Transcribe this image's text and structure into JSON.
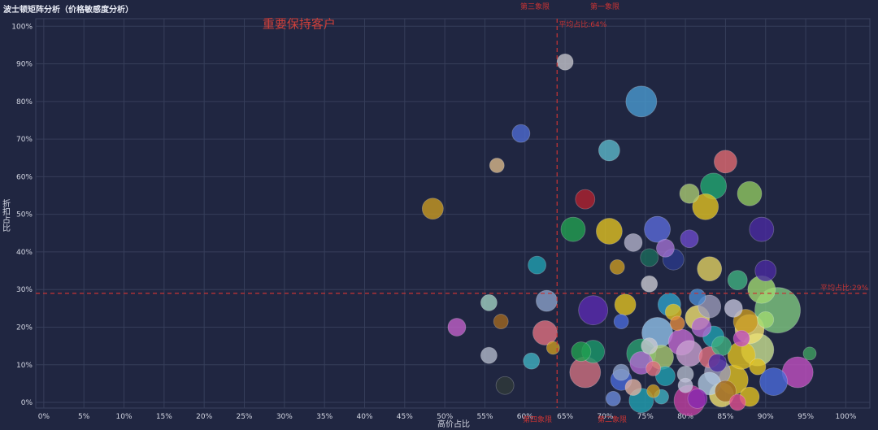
{
  "chart_data": {
    "type": "scatter",
    "subtype": "bubble",
    "title": "波士顿矩阵分析（价格敏感度分析）",
    "xlabel": "高价占比",
    "ylabel": "折扣占比",
    "xlim": [
      -0.01,
      1.03
    ],
    "ylim": [
      -0.015,
      1.02
    ],
    "xticks": [
      0,
      0.05,
      0.1,
      0.15,
      0.2,
      0.25,
      0.3,
      0.35,
      0.4,
      0.45,
      0.5,
      0.55,
      0.6,
      0.65,
      0.7,
      0.75,
      0.8,
      0.85,
      0.9,
      0.95,
      1.0
    ],
    "xtick_labels": [
      "0%",
      "5%",
      "10%",
      "15%",
      "20%",
      "25%",
      "30%",
      "35%",
      "40%",
      "45%",
      "50%",
      "55%",
      "60%",
      "65%",
      "70%",
      "75%",
      "80%",
      "85%",
      "90%",
      "95%",
      "100%"
    ],
    "yticks": [
      0,
      0.1,
      0.2,
      0.3,
      0.4,
      0.5,
      0.6,
      0.7,
      0.8,
      0.9,
      1.0
    ],
    "ytick_labels": [
      "0%",
      "10%",
      "20%",
      "30%",
      "40%",
      "50%",
      "60%",
      "70%",
      "80%",
      "90%",
      "100%"
    ],
    "grid": true,
    "avg_x": 0.64,
    "avg_y": 0.29,
    "avg_x_label": "平均占比:64%",
    "avg_y_label": "平均占比:29%",
    "quadrant_labels": {
      "top_left": "第三象限",
      "top_right": "第一象限",
      "bottom_left": "第四象限",
      "bottom_right": "第二象限"
    },
    "annotation": "重要保持客户",
    "annotation_at": [
      0.3,
      1.0
    ],
    "colors": {
      "background": "#202641",
      "grid": "#363e5a",
      "reference_line": "#c93434",
      "text": "#d4d7e3"
    },
    "points": [
      {
        "x": 0.65,
        "y": 0.905,
        "size": 10,
        "color": "#c2c2c8"
      },
      {
        "x": 0.745,
        "y": 0.8,
        "size": 19,
        "color": "#4a9ad0"
      },
      {
        "x": 0.595,
        "y": 0.715,
        "size": 11,
        "color": "#4e6ad0"
      },
      {
        "x": 0.705,
        "y": 0.67,
        "size": 13,
        "color": "#5bb7c8"
      },
      {
        "x": 0.565,
        "y": 0.63,
        "size": 9,
        "color": "#d8b88a"
      },
      {
        "x": 0.85,
        "y": 0.64,
        "size": 14,
        "color": "#e06a70"
      },
      {
        "x": 0.675,
        "y": 0.54,
        "size": 12,
        "color": "#b0222e"
      },
      {
        "x": 0.485,
        "y": 0.515,
        "size": 13,
        "color": "#c89a22"
      },
      {
        "x": 0.805,
        "y": 0.555,
        "size": 12,
        "color": "#a8c870"
      },
      {
        "x": 0.835,
        "y": 0.575,
        "size": 16,
        "color": "#22a870"
      },
      {
        "x": 0.88,
        "y": 0.555,
        "size": 15,
        "color": "#90c860"
      },
      {
        "x": 0.825,
        "y": 0.52,
        "size": 16,
        "color": "#e0c020"
      },
      {
        "x": 0.66,
        "y": 0.46,
        "size": 15,
        "color": "#22a050"
      },
      {
        "x": 0.705,
        "y": 0.455,
        "size": 16,
        "color": "#e0c020"
      },
      {
        "x": 0.765,
        "y": 0.46,
        "size": 16,
        "color": "#5a6ad8"
      },
      {
        "x": 0.735,
        "y": 0.425,
        "size": 11,
        "color": "#b0b0c8"
      },
      {
        "x": 0.805,
        "y": 0.435,
        "size": 11,
        "color": "#6a4ac8"
      },
      {
        "x": 0.895,
        "y": 0.46,
        "size": 15,
        "color": "#4a2aa0"
      },
      {
        "x": 0.775,
        "y": 0.41,
        "size": 11,
        "color": "#a070d0"
      },
      {
        "x": 0.755,
        "y": 0.385,
        "size": 11,
        "color": "#1a6a5a"
      },
      {
        "x": 0.785,
        "y": 0.38,
        "size": 13,
        "color": "#2a3a8a"
      },
      {
        "x": 0.615,
        "y": 0.365,
        "size": 11,
        "color": "#20a0b0"
      },
      {
        "x": 0.715,
        "y": 0.36,
        "size": 9,
        "color": "#c89a22"
      },
      {
        "x": 0.83,
        "y": 0.355,
        "size": 15,
        "color": "#e0d060"
      },
      {
        "x": 0.9,
        "y": 0.35,
        "size": 13,
        "color": "#4a2aa0"
      },
      {
        "x": 0.865,
        "y": 0.325,
        "size": 12,
        "color": "#40b080"
      },
      {
        "x": 0.755,
        "y": 0.315,
        "size": 10,
        "color": "#c8c8d0"
      },
      {
        "x": 0.895,
        "y": 0.3,
        "size": 17,
        "color": "#a0d870"
      },
      {
        "x": 0.627,
        "y": 0.27,
        "size": 13,
        "color": "#8aa0c8"
      },
      {
        "x": 0.555,
        "y": 0.265,
        "size": 10,
        "color": "#a0d0c0"
      },
      {
        "x": 0.685,
        "y": 0.245,
        "size": 18,
        "color": "#5a2ab0"
      },
      {
        "x": 0.725,
        "y": 0.26,
        "size": 13,
        "color": "#e0c020"
      },
      {
        "x": 0.78,
        "y": 0.26,
        "size": 14,
        "color": "#30a0c8"
      },
      {
        "x": 0.83,
        "y": 0.255,
        "size": 14,
        "color": "#9a9ab8"
      },
      {
        "x": 0.915,
        "y": 0.245,
        "size": 28,
        "color": "#80c880"
      },
      {
        "x": 0.57,
        "y": 0.215,
        "size": 9,
        "color": "#a06820"
      },
      {
        "x": 0.515,
        "y": 0.2,
        "size": 11,
        "color": "#c060c8"
      },
      {
        "x": 0.72,
        "y": 0.215,
        "size": 9,
        "color": "#4a6ad8"
      },
      {
        "x": 0.815,
        "y": 0.225,
        "size": 15,
        "color": "#f0e070"
      },
      {
        "x": 0.875,
        "y": 0.215,
        "size": 15,
        "color": "#c89a22"
      },
      {
        "x": 0.625,
        "y": 0.185,
        "size": 15,
        "color": "#e07080"
      },
      {
        "x": 0.765,
        "y": 0.185,
        "size": 19,
        "color": "#90c0e8"
      },
      {
        "x": 0.795,
        "y": 0.16,
        "size": 16,
        "color": "#c06ad0"
      },
      {
        "x": 0.835,
        "y": 0.175,
        "size": 13,
        "color": "#20a0b0"
      },
      {
        "x": 0.88,
        "y": 0.195,
        "size": 18,
        "color": "#f0e070"
      },
      {
        "x": 0.635,
        "y": 0.145,
        "size": 8,
        "color": "#c89a22"
      },
      {
        "x": 0.67,
        "y": 0.135,
        "size": 12,
        "color": "#22a050"
      },
      {
        "x": 0.685,
        "y": 0.135,
        "size": 14,
        "color": "#1a9a6a"
      },
      {
        "x": 0.745,
        "y": 0.13,
        "size": 18,
        "color": "#2aa070"
      },
      {
        "x": 0.745,
        "y": 0.105,
        "size": 14,
        "color": "#b06ad0"
      },
      {
        "x": 0.77,
        "y": 0.12,
        "size": 15,
        "color": "#a8c870"
      },
      {
        "x": 0.805,
        "y": 0.13,
        "size": 16,
        "color": "#c8a0d0"
      },
      {
        "x": 0.83,
        "y": 0.12,
        "size": 13,
        "color": "#e07080"
      },
      {
        "x": 0.87,
        "y": 0.125,
        "size": 17,
        "color": "#e0c020"
      },
      {
        "x": 0.89,
        "y": 0.14,
        "size": 20,
        "color": "#c8e090"
      },
      {
        "x": 0.955,
        "y": 0.13,
        "size": 8,
        "color": "#40a060"
      },
      {
        "x": 0.555,
        "y": 0.125,
        "size": 10,
        "color": "#b0b8c8"
      },
      {
        "x": 0.608,
        "y": 0.11,
        "size": 10,
        "color": "#40b0c0"
      },
      {
        "x": 0.675,
        "y": 0.08,
        "size": 19,
        "color": "#d07080"
      },
      {
        "x": 0.72,
        "y": 0.06,
        "size": 13,
        "color": "#4a6ad8"
      },
      {
        "x": 0.775,
        "y": 0.07,
        "size": 12,
        "color": "#20a0b0"
      },
      {
        "x": 0.8,
        "y": 0.075,
        "size": 10,
        "color": "#b0b8c8"
      },
      {
        "x": 0.84,
        "y": 0.08,
        "size": 16,
        "color": "#9a9ab8"
      },
      {
        "x": 0.86,
        "y": 0.06,
        "size": 18,
        "color": "#e0c020"
      },
      {
        "x": 0.91,
        "y": 0.055,
        "size": 17,
        "color": "#4a6ad8"
      },
      {
        "x": 0.94,
        "y": 0.08,
        "size": 19,
        "color": "#c050c0"
      },
      {
        "x": 0.735,
        "y": 0.04,
        "size": 10,
        "color": "#e0b0a0"
      },
      {
        "x": 0.575,
        "y": 0.045,
        "size": 11,
        "color": "#303a38"
      },
      {
        "x": 0.745,
        "y": 0.005,
        "size": 15,
        "color": "#20a0b0"
      },
      {
        "x": 0.77,
        "y": 0.015,
        "size": 9,
        "color": "#40b0c0"
      },
      {
        "x": 0.805,
        "y": 0.005,
        "size": 19,
        "color": "#c040a0"
      },
      {
        "x": 0.815,
        "y": 0.01,
        "size": 12,
        "color": "#8a2ab0"
      },
      {
        "x": 0.845,
        "y": 0.02,
        "size": 15,
        "color": "#f0e070"
      },
      {
        "x": 0.88,
        "y": 0.015,
        "size": 12,
        "color": "#e0c020"
      },
      {
        "x": 0.865,
        "y": 0.0,
        "size": 10,
        "color": "#e05090"
      },
      {
        "x": 0.71,
        "y": 0.01,
        "size": 9,
        "color": "#6a8ad8"
      },
      {
        "x": 0.72,
        "y": 0.08,
        "size": 10,
        "color": "#8aa0c8"
      },
      {
        "x": 0.76,
        "y": 0.03,
        "size": 8,
        "color": "#c89a22"
      },
      {
        "x": 0.83,
        "y": 0.05,
        "size": 14,
        "color": "#b0c8e0"
      },
      {
        "x": 0.85,
        "y": 0.03,
        "size": 13,
        "color": "#a06820"
      },
      {
        "x": 0.785,
        "y": 0.24,
        "size": 10,
        "color": "#e0c020"
      },
      {
        "x": 0.82,
        "y": 0.2,
        "size": 12,
        "color": "#b06ad0"
      },
      {
        "x": 0.86,
        "y": 0.25,
        "size": 11,
        "color": "#c0c0d8"
      },
      {
        "x": 0.9,
        "y": 0.22,
        "size": 10,
        "color": "#a0d870"
      },
      {
        "x": 0.755,
        "y": 0.15,
        "size": 10,
        "color": "#c8c8d0"
      },
      {
        "x": 0.79,
        "y": 0.21,
        "size": 9,
        "color": "#e08a40"
      },
      {
        "x": 0.815,
        "y": 0.28,
        "size": 10,
        "color": "#4a8ad0"
      },
      {
        "x": 0.845,
        "y": 0.15,
        "size": 12,
        "color": "#40b080"
      },
      {
        "x": 0.87,
        "y": 0.17,
        "size": 10,
        "color": "#c050c0"
      },
      {
        "x": 0.76,
        "y": 0.09,
        "size": 9,
        "color": "#e07080"
      },
      {
        "x": 0.8,
        "y": 0.045,
        "size": 9,
        "color": "#c0c0d8"
      },
      {
        "x": 0.84,
        "y": 0.105,
        "size": 11,
        "color": "#4a2aa0"
      },
      {
        "x": 0.89,
        "y": 0.095,
        "size": 10,
        "color": "#e0c020"
      }
    ]
  }
}
